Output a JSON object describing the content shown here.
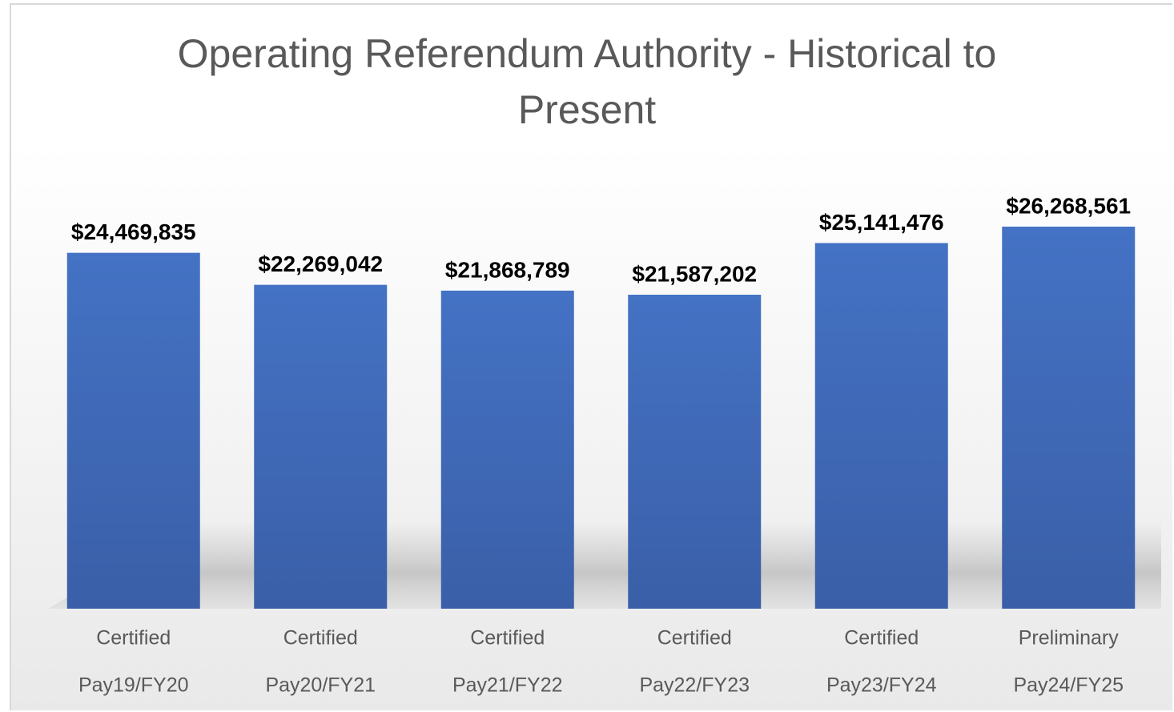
{
  "chart_data": {
    "type": "bar",
    "title": "Operating Referendum Authority - Historical to Present",
    "categories": [
      [
        "Certified",
        "Pay19/FY20"
      ],
      [
        "Certified",
        "Pay20/FY21"
      ],
      [
        "Certified",
        "Pay21/FY22"
      ],
      [
        "Certified",
        "Pay22/FY23"
      ],
      [
        "Certified",
        "Pay23/FY24"
      ],
      [
        "Preliminary",
        "Pay24/FY25"
      ]
    ],
    "values": [
      24469835,
      22269042,
      21868789,
      21587202,
      25141476,
      26268561
    ],
    "value_labels": [
      "$24,469,835",
      "$22,269,042",
      "$21,868,789",
      "$21,587,202",
      "$25,141,476",
      "$26,268,561"
    ],
    "color": "#4472c4"
  }
}
